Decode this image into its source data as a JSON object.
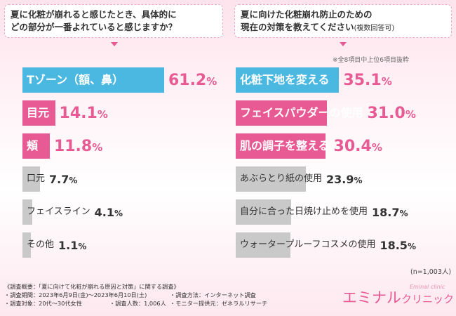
{
  "questions": {
    "left": {
      "line1": "夏に化粧が崩れると感じたとき、具体的に",
      "line2": "どの部分が一番よれていると感じますか？"
    },
    "right": {
      "line1": "夏に向けた化粧崩れ防止のための",
      "line2": "現在の対策を教えてください",
      "line2_note": "(複数回答可)"
    }
  },
  "note_top": "※全8項目中上位6項目抜粋",
  "n_note": "(n=1,003人)",
  "footer": {
    "title": "《調査概要：「夏に向けて化粧が崩れる原因と対策」に関する調査》",
    "period": "・調査期間：2023年6月9日(金)～2023年6月10日(土)",
    "method": "・調査方法：インターネット調査",
    "target": "・調査対象：20代～30代女性",
    "people": "・調査人数：1,006人",
    "provider": "・モニター提供元：ゼネラルリサーチ"
  },
  "logo": {
    "main": "エミナル",
    "sub": "クリニック",
    "en": "Eminal clinic"
  },
  "colors": {
    "blue": "#4bb8e2",
    "pink": "#e85a93",
    "gray": "#c9c9c9",
    "bg": "#fde3ec"
  },
  "chart_data": [
    {
      "type": "bar",
      "orientation": "horizontal",
      "title": "夏に化粧が崩れると感じたとき、具体的にどの部分が一番よれていると感じますか？",
      "categories": [
        "Tゾーン（額、鼻）",
        "目元",
        "頬",
        "口元",
        "フェイスライン",
        "その他"
      ],
      "values": [
        61.2,
        14.1,
        11.8,
        7.7,
        4.1,
        1.1
      ],
      "unit": "%",
      "bar_colors": [
        "blue",
        "pink",
        "pink",
        "gray",
        "gray",
        "gray"
      ]
    },
    {
      "type": "bar",
      "orientation": "horizontal",
      "title": "夏に向けた化粧崩れ防止のための現在の対策を教えてください(複数回答可)",
      "categories": [
        "化粧下地を変える",
        "フェイスパウダーの使用",
        "肌の調子を整える",
        "あぶらとり紙の使用",
        "自分に合った日焼け止めを使用",
        "ウォータープルーフコスメの使用"
      ],
      "values": [
        35.1,
        31.0,
        30.4,
        23.9,
        18.7,
        18.5
      ],
      "unit": "%",
      "bar_colors": [
        "blue",
        "pink",
        "pink",
        "gray",
        "gray",
        "gray"
      ]
    }
  ]
}
